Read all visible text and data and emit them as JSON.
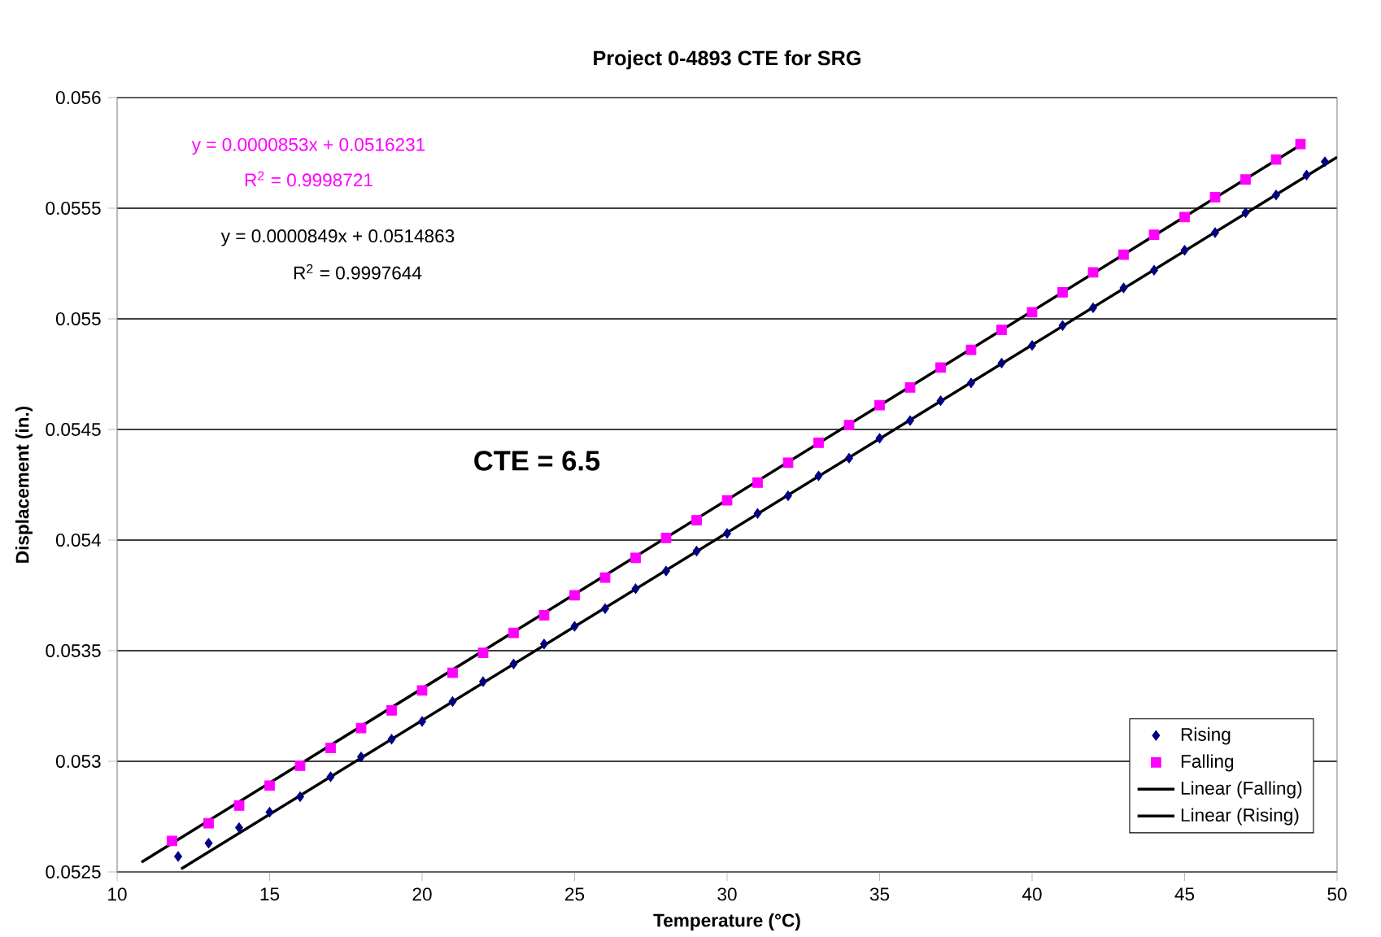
{
  "chart_data": {
    "type": "scatter",
    "title": "Project 0-4893 CTE for SRG",
    "xlabel": "Temperature (°C)",
    "ylabel": "Displacement (in.)",
    "xlim": [
      10,
      50
    ],
    "xticks": [
      10,
      15,
      20,
      25,
      30,
      35,
      40,
      45,
      50
    ],
    "ylim": [
      0.0525,
      0.056
    ],
    "yticks": [
      0.0525,
      0.053,
      0.0535,
      0.054,
      0.0545,
      0.055,
      0.0555,
      0.056
    ],
    "grid": "y",
    "legend": "bottom right",
    "series": [
      {
        "name": "Rising",
        "marker": "diamond",
        "color": "#000080",
        "x": [
          12,
          13,
          14,
          15,
          16,
          17,
          18,
          19,
          20,
          21,
          22,
          23,
          24,
          25,
          26,
          27,
          28,
          29,
          30,
          31,
          32,
          33,
          34,
          35,
          36,
          37,
          38,
          39,
          40,
          41,
          42,
          43,
          44,
          45,
          46,
          47,
          48,
          49,
          49.6
        ],
        "values": [
          0.05257,
          0.05263,
          0.0527,
          0.05277,
          0.05284,
          0.05293,
          0.05302,
          0.0531,
          0.05318,
          0.05327,
          0.05336,
          0.05344,
          0.05353,
          0.05361,
          0.05369,
          0.05378,
          0.05386,
          0.05395,
          0.05403,
          0.05412,
          0.0542,
          0.05429,
          0.05437,
          0.05446,
          0.05454,
          0.05463,
          0.05471,
          0.0548,
          0.05488,
          0.05497,
          0.05505,
          0.05514,
          0.05522,
          0.05531,
          0.05539,
          0.05548,
          0.05556,
          0.05565,
          0.05571
        ]
      },
      {
        "name": "Falling",
        "marker": "square",
        "color": "#ff00ff",
        "x": [
          11.8,
          13,
          14,
          15,
          16,
          17,
          18,
          19,
          20,
          21,
          22,
          23,
          24,
          25,
          26,
          27,
          28,
          29,
          30,
          31,
          32,
          33,
          34,
          35,
          36,
          37,
          38,
          39,
          40,
          41,
          42,
          43,
          44,
          45,
          46,
          47,
          48,
          48.8
        ],
        "values": [
          0.05264,
          0.05272,
          0.0528,
          0.05289,
          0.05298,
          0.05306,
          0.05315,
          0.05323,
          0.05332,
          0.0534,
          0.05349,
          0.05358,
          0.05366,
          0.05375,
          0.05383,
          0.05392,
          0.05401,
          0.05409,
          0.05418,
          0.05426,
          0.05435,
          0.05444,
          0.05452,
          0.05461,
          0.05469,
          0.05478,
          0.05486,
          0.05495,
          0.05503,
          0.05512,
          0.05521,
          0.05529,
          0.05538,
          0.05546,
          0.05555,
          0.05563,
          0.05572,
          0.05579
        ]
      },
      {
        "name": "Linear (Falling)",
        "type": "line",
        "marker": "none",
        "color": "#000000",
        "x": [
          10.8,
          48.9
        ],
        "values": [
          0.052544,
          0.055794
        ]
      },
      {
        "name": "Linear (Rising)",
        "type": "line",
        "marker": "none",
        "color": "#000000",
        "x": [
          12.1,
          50
        ],
        "values": [
          0.052514,
          0.055731
        ]
      }
    ],
    "annotations": [
      "y = 0.0000853x + 0.0516231",
      "R$^{2}$ = 0.9998721",
      "y = 0.0000849x + 0.0514863",
      "R$^{2}$ = 0.9997644",
      "CTE = 6.5"
    ]
  }
}
